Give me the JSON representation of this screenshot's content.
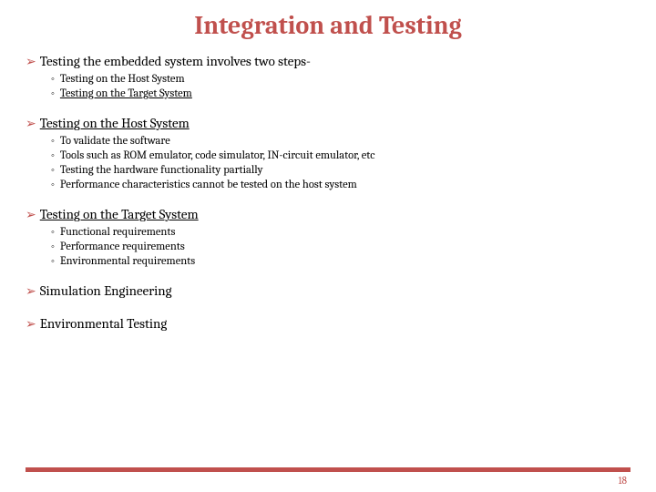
{
  "title": "Integration and Testing",
  "colors": {
    "accent": "#c0504d",
    "text": "#000000",
    "background": "#ffffff"
  },
  "fonts": {
    "title_size": 28,
    "l1_size": 15,
    "l2_size": 12.5
  },
  "page_number": "18",
  "sections": [
    {
      "heading": "Testing the embedded system involves two steps-",
      "underline": false,
      "items": [
        {
          "text": "Testing on the Host System",
          "underline": false
        },
        {
          "text": "Testing on the Target System",
          "underline": true
        }
      ]
    },
    {
      "heading": "Testing on the Host System",
      "underline": true,
      "items": [
        {
          "text": "To validate the software",
          "underline": false
        },
        {
          "text": "Tools such as ROM emulator, code simulator, IN-circuit emulator, etc",
          "underline": false
        },
        {
          "text": "Testing the hardware functionality partially",
          "underline": false
        },
        {
          "text": "Performance characteristics cannot be tested on the host system",
          "underline": false
        }
      ]
    },
    {
      "heading": "Testing on the Target System",
      "underline": true,
      "items": [
        {
          "text": "Functional requirements",
          "underline": false
        },
        {
          "text": "Performance requirements",
          "underline": false
        },
        {
          "text": "Environmental requirements",
          "underline": false
        }
      ]
    },
    {
      "heading": "Simulation Engineering",
      "underline": false,
      "items": []
    },
    {
      "heading": "Environmental Testing",
      "underline": false,
      "items": []
    }
  ]
}
